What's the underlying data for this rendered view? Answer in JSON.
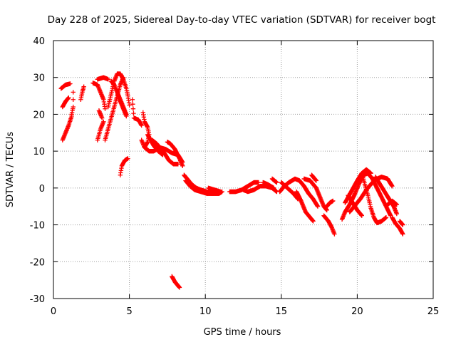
{
  "chart_data": {
    "type": "scatter",
    "title": "Day 228 of 2025, Sidereal Day-to-day VTEC variation (SDTVAR) for receiver bogt",
    "xlabel": "GPS time / hours",
    "ylabel": "SDTVAR / TECUs",
    "xlim": [
      0,
      25
    ],
    "ylim": [
      -30,
      40
    ],
    "xticks": [
      0,
      5,
      10,
      15,
      20,
      25
    ],
    "yticks": [
      -30,
      -20,
      -10,
      0,
      10,
      20,
      30,
      40
    ],
    "grid": true,
    "marker": "+",
    "color": "#ff0000",
    "tracks": [
      {
        "points": [
          [
            0.6,
            22
          ],
          [
            0.8,
            23.5
          ],
          [
            1.0,
            24.5
          ]
        ]
      },
      {
        "points": [
          [
            0.5,
            27
          ],
          [
            0.8,
            28
          ],
          [
            1.1,
            28.3
          ]
        ]
      },
      {
        "points": [
          [
            0.6,
            13
          ],
          [
            0.8,
            15
          ],
          [
            1.0,
            17
          ],
          [
            1.2,
            19.5
          ]
        ]
      },
      {
        "points": [
          [
            1.2,
            20
          ],
          [
            1.3,
            22
          ],
          [
            1.3,
            26
          ]
        ]
      },
      {
        "points": [
          [
            1.8,
            24
          ],
          [
            1.9,
            26
          ],
          [
            2.0,
            27.5
          ]
        ]
      },
      {
        "points": [
          [
            2.6,
            28.5
          ],
          [
            2.9,
            28
          ],
          [
            3.1,
            26
          ],
          [
            3.3,
            24
          ],
          [
            3.4,
            21.5
          ]
        ]
      },
      {
        "points": [
          [
            3.0,
            21
          ],
          [
            3.2,
            19
          ]
        ]
      },
      {
        "points": [
          [
            2.9,
            13
          ],
          [
            3.1,
            16
          ],
          [
            3.3,
            18
          ]
        ]
      },
      {
        "points": [
          [
            2.9,
            29.5
          ],
          [
            3.3,
            30
          ],
          [
            3.6,
            29.5
          ]
        ]
      },
      {
        "points": [
          [
            3.4,
            13
          ],
          [
            3.6,
            16
          ],
          [
            3.8,
            19
          ],
          [
            4.0,
            22
          ],
          [
            4.2,
            25
          ],
          [
            4.4,
            28
          ],
          [
            4.6,
            30
          ]
        ]
      },
      {
        "points": [
          [
            3.6,
            22
          ],
          [
            3.8,
            25.5
          ],
          [
            4.0,
            29
          ],
          [
            4.2,
            31
          ],
          [
            4.4,
            31
          ],
          [
            4.6,
            29.5
          ],
          [
            4.8,
            27
          ],
          [
            4.9,
            25
          ],
          [
            5.0,
            22.5
          ]
        ]
      },
      {
        "points": [
          [
            3.8,
            29
          ],
          [
            4.0,
            28
          ],
          [
            4.2,
            26
          ],
          [
            4.4,
            24
          ],
          [
            4.6,
            22
          ],
          [
            4.8,
            20
          ]
        ]
      },
      {
        "points": [
          [
            4.2,
            26
          ],
          [
            4.4,
            23.5
          ],
          [
            4.6,
            21.5
          ],
          [
            4.8,
            19.5
          ]
        ]
      },
      {
        "points": [
          [
            4.4,
            3.5
          ],
          [
            4.5,
            6
          ],
          [
            4.7,
            7.5
          ],
          [
            4.9,
            8
          ]
        ]
      },
      {
        "points": [
          [
            5.2,
            24
          ],
          [
            5.3,
            19
          ],
          [
            5.6,
            18.5
          ],
          [
            5.8,
            17
          ]
        ]
      },
      {
        "points": [
          [
            5.9,
            20.5
          ],
          [
            6.0,
            18
          ],
          [
            6.2,
            16.5
          ],
          [
            6.3,
            14.5
          ],
          [
            6.2,
            12.5
          ],
          [
            6.0,
            11
          ]
        ]
      },
      {
        "points": [
          [
            5.8,
            13
          ],
          [
            6.0,
            11
          ],
          [
            6.3,
            10
          ],
          [
            6.6,
            10
          ],
          [
            7.0,
            11
          ],
          [
            7.4,
            10.5
          ],
          [
            7.8,
            9.5
          ],
          [
            8.2,
            9
          ],
          [
            8.5,
            7
          ]
        ]
      },
      {
        "points": [
          [
            6.5,
            13
          ],
          [
            6.8,
            12
          ],
          [
            7.0,
            11
          ],
          [
            7.3,
            9.5
          ],
          [
            7.6,
            7.5
          ],
          [
            7.9,
            6.5
          ],
          [
            8.2,
            6.5
          ]
        ]
      },
      {
        "points": [
          [
            7.5,
            12.5
          ],
          [
            7.7,
            12
          ],
          [
            8.0,
            10.5
          ],
          [
            8.3,
            8
          ],
          [
            8.5,
            6
          ]
        ]
      },
      {
        "points": [
          [
            6.2,
            14.5
          ],
          [
            6.4,
            13
          ],
          [
            6.6,
            11.5
          ],
          [
            6.9,
            10
          ],
          [
            7.2,
            9
          ]
        ]
      },
      {
        "points": [
          [
            7.8,
            -24
          ],
          [
            8.0,
            -25.5
          ],
          [
            8.2,
            -26.5
          ],
          [
            8.3,
            -27
          ]
        ]
      },
      {
        "points": [
          [
            8.6,
            3.5
          ],
          [
            8.9,
            2
          ],
          [
            9.1,
            1
          ],
          [
            9.4,
            0
          ],
          [
            9.7,
            -0.5
          ],
          [
            10.1,
            -1
          ],
          [
            10.5,
            -1.5
          ],
          [
            10.9,
            -1.5
          ],
          [
            11.1,
            -1
          ]
        ]
      },
      {
        "points": [
          [
            8.7,
            2
          ],
          [
            9.0,
            0.5
          ],
          [
            9.3,
            -0.5
          ],
          [
            9.7,
            -1
          ],
          [
            10.1,
            -1.5
          ],
          [
            10.5,
            -1.5
          ]
        ]
      },
      {
        "points": [
          [
            10.2,
            0
          ],
          [
            10.6,
            -0.5
          ],
          [
            11.0,
            -1
          ]
        ]
      },
      {
        "points": [
          [
            11.6,
            -1
          ],
          [
            12.0,
            -1
          ],
          [
            12.4,
            -0.5
          ],
          [
            12.8,
            0.5
          ],
          [
            13.2,
            1.5
          ],
          [
            13.5,
            1.5
          ]
        ]
      },
      {
        "points": [
          [
            12.5,
            -0.5
          ],
          [
            12.8,
            -1
          ],
          [
            13.2,
            -0.5
          ],
          [
            13.6,
            0.5
          ],
          [
            14.0,
            0.5
          ],
          [
            14.4,
            0
          ],
          [
            14.7,
            -1
          ]
        ]
      },
      {
        "points": [
          [
            13.8,
            1.5
          ],
          [
            14.1,
            1
          ],
          [
            14.5,
            0
          ]
        ]
      },
      {
        "points": [
          [
            14.4,
            2.5
          ],
          [
            14.7,
            1.5
          ]
        ]
      },
      {
        "points": [
          [
            14.9,
            -1
          ],
          [
            15.2,
            0.5
          ],
          [
            15.5,
            1.5
          ],
          [
            15.9,
            2.5
          ],
          [
            16.2,
            2
          ],
          [
            16.5,
            0.5
          ],
          [
            16.8,
            -1.5
          ],
          [
            17.1,
            -3
          ],
          [
            17.4,
            -5
          ]
        ]
      },
      {
        "points": [
          [
            15.0,
            1.5
          ],
          [
            15.4,
            0
          ],
          [
            15.8,
            -1.5
          ],
          [
            16.1,
            -3
          ]
        ]
      },
      {
        "points": [
          [
            16.0,
            -1
          ],
          [
            16.3,
            -3.5
          ],
          [
            16.6,
            -6.5
          ],
          [
            16.9,
            -8
          ],
          [
            17.1,
            -9
          ]
        ]
      },
      {
        "points": [
          [
            16.5,
            2.5
          ],
          [
            16.9,
            2
          ],
          [
            17.3,
            0
          ],
          [
            17.6,
            -3
          ],
          [
            17.8,
            -5
          ],
          [
            18.0,
            -6
          ]
        ]
      },
      {
        "points": [
          [
            17.0,
            3.5
          ],
          [
            17.3,
            2
          ]
        ]
      },
      {
        "points": [
          [
            17.8,
            -7.5
          ],
          [
            18.1,
            -9
          ],
          [
            18.3,
            -10.5
          ],
          [
            18.5,
            -12.5
          ]
        ]
      },
      {
        "points": [
          [
            18.0,
            -5
          ],
          [
            18.2,
            -4
          ],
          [
            18.4,
            -3.5
          ]
        ]
      },
      {
        "points": [
          [
            19.0,
            -8.5
          ],
          [
            19.2,
            -6.5
          ],
          [
            19.5,
            -4.5
          ],
          [
            19.8,
            -2
          ],
          [
            20.1,
            1
          ],
          [
            20.4,
            3.5
          ],
          [
            20.7,
            4
          ],
          [
            21.0,
            2.5
          ],
          [
            21.3,
            0
          ],
          [
            21.6,
            -2.5
          ],
          [
            21.9,
            -5
          ],
          [
            22.2,
            -7.5
          ]
        ]
      },
      {
        "points": [
          [
            19.2,
            -4
          ],
          [
            19.6,
            -1
          ],
          [
            20.0,
            2
          ],
          [
            20.3,
            4
          ],
          [
            20.6,
            5
          ],
          [
            20.9,
            4
          ]
        ]
      },
      {
        "points": [
          [
            19.5,
            -6.5
          ],
          [
            19.8,
            -5
          ],
          [
            20.2,
            -3
          ],
          [
            20.6,
            -0.5
          ],
          [
            21.0,
            1.5
          ],
          [
            21.3,
            2.5
          ],
          [
            21.6,
            3
          ],
          [
            22.0,
            2.5
          ],
          [
            22.3,
            0.5
          ]
        ]
      },
      {
        "points": [
          [
            19.4,
            -2
          ],
          [
            19.7,
            -4
          ],
          [
            20.0,
            -6
          ],
          [
            20.3,
            -7.5
          ]
        ]
      },
      {
        "points": [
          [
            20.3,
            4
          ],
          [
            20.5,
            1
          ],
          [
            20.7,
            -2
          ],
          [
            20.9,
            -5.5
          ],
          [
            21.1,
            -8
          ],
          [
            21.3,
            -9.5
          ],
          [
            21.6,
            -9
          ],
          [
            21.9,
            -8
          ]
        ]
      },
      {
        "points": [
          [
            21.2,
            3
          ],
          [
            21.5,
            1
          ],
          [
            21.8,
            -1
          ],
          [
            22.1,
            -3
          ],
          [
            22.4,
            -5
          ],
          [
            22.6,
            -7
          ]
        ]
      },
      {
        "points": [
          [
            22.3,
            -8
          ],
          [
            22.5,
            -9.5
          ],
          [
            22.8,
            -11
          ],
          [
            23.0,
            -12.5
          ]
        ]
      },
      {
        "points": [
          [
            22.0,
            -4.5
          ],
          [
            22.3,
            -3.5
          ],
          [
            22.6,
            -4.5
          ]
        ]
      },
      {
        "points": [
          [
            22.8,
            -9
          ],
          [
            23.0,
            -10
          ]
        ]
      }
    ]
  }
}
